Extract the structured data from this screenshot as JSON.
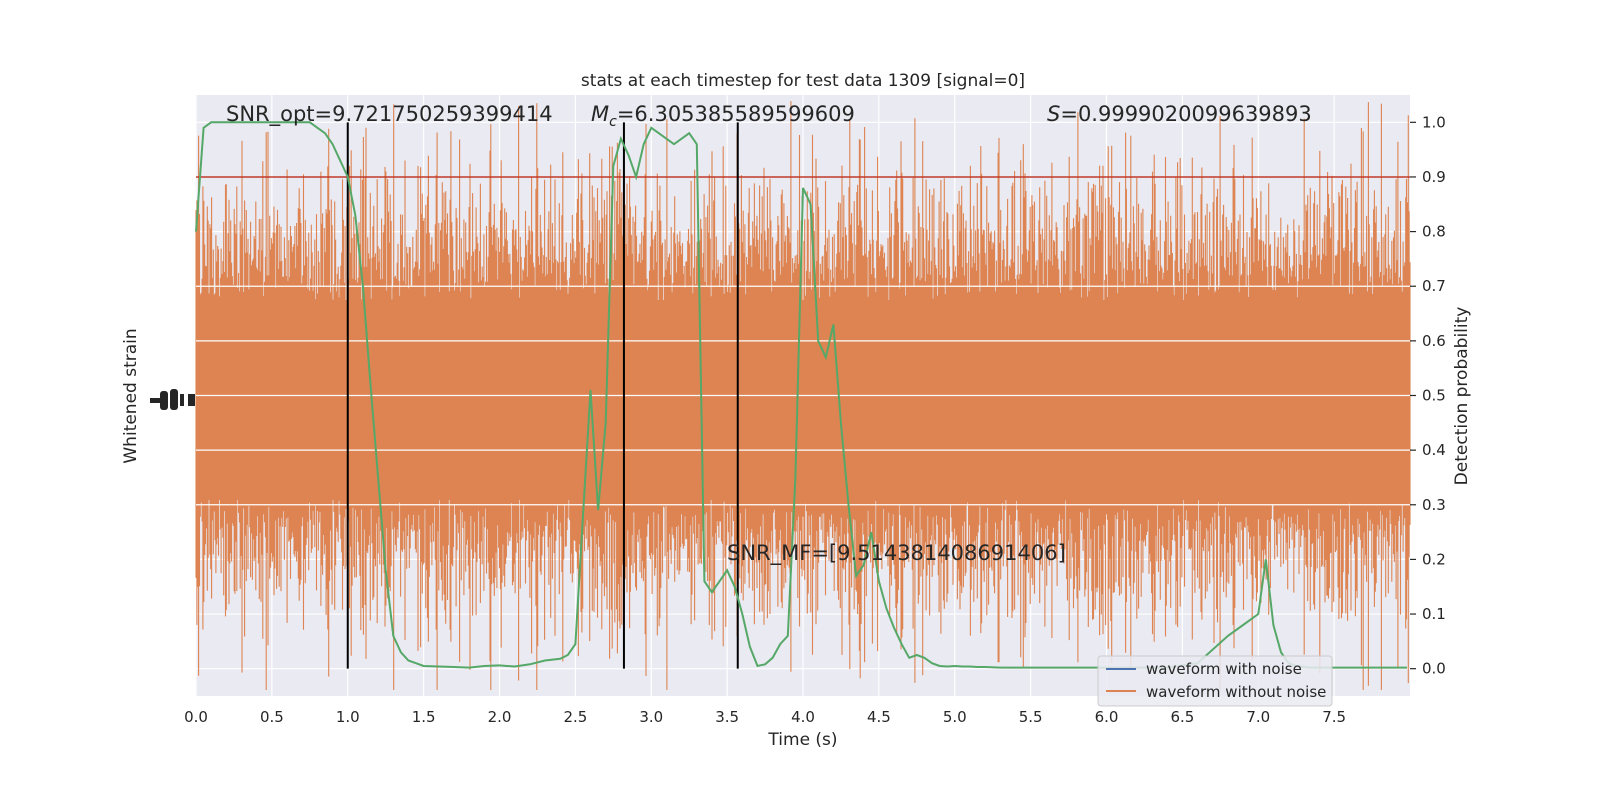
{
  "chart_data": {
    "type": "line",
    "title": "stats at each timestep for test data 1309 [signal=0]",
    "xlabel": "Time (s)",
    "ylabel_left": "Whitened strain",
    "ylabel_right": "Detection probability",
    "xlim": [
      0.0,
      8.0
    ],
    "ylim_right": [
      -0.05,
      1.05
    ],
    "x_ticks": [
      "0.0",
      "0.5",
      "1.0",
      "1.5",
      "2.0",
      "2.5",
      "3.0",
      "3.5",
      "4.0",
      "4.5",
      "5.0",
      "5.5",
      "6.0",
      "6.5",
      "7.0",
      "7.5"
    ],
    "right_ticks": [
      "0.0",
      "0.1",
      "0.2",
      "0.3",
      "0.4",
      "0.5",
      "0.6",
      "0.7",
      "0.8",
      "0.9",
      "1.0"
    ],
    "grid": true,
    "threshold": 0.9,
    "threshold_color": "#c0392b",
    "vertical_markers": [
      1.0,
      2.82,
      3.57
    ],
    "annotations": {
      "snr_opt": "SNR_opt=9.721750259399414",
      "mc_symbol": "M",
      "mc_sub": "c",
      "mc_value": "=6.305385589599609",
      "s_symbol": "S",
      "s_value": "=0.9999020099639893",
      "snr_mf": "SNR_MF=[9.514381408691406]"
    },
    "legend": {
      "position": "bottom-right",
      "entries": [
        {
          "label": "waveform with noise",
          "color": "#4c72b0"
        },
        {
          "label": "waveform without noise",
          "color": "#dd8452"
        }
      ]
    },
    "series": [
      {
        "name": "",
        "axis": "right",
        "color": "#55a868",
        "x": [
          0.0,
          0.05,
          0.1,
          0.15,
          0.2,
          0.25,
          0.3,
          0.35,
          0.4,
          0.45,
          0.5,
          0.55,
          0.6,
          0.65,
          0.7,
          0.75,
          0.8,
          0.85,
          0.9,
          0.95,
          1.0,
          1.05,
          1.1,
          1.15,
          1.2,
          1.25,
          1.3,
          1.35,
          1.4,
          1.45,
          1.5,
          1.6,
          1.7,
          1.8,
          1.9,
          2.0,
          2.05,
          2.1,
          2.15,
          2.2,
          2.3,
          2.4,
          2.45,
          2.5,
          2.55,
          2.6,
          2.65,
          2.7,
          2.75,
          2.8,
          2.85,
          2.9,
          2.95,
          3.0,
          3.05,
          3.1,
          3.15,
          3.2,
          3.25,
          3.3,
          3.35,
          3.4,
          3.45,
          3.5,
          3.55,
          3.6,
          3.65,
          3.7,
          3.75,
          3.8,
          3.85,
          3.9,
          3.95,
          4.0,
          4.05,
          4.1,
          4.15,
          4.2,
          4.25,
          4.3,
          4.35,
          4.4,
          4.45,
          4.5,
          4.55,
          4.6,
          4.65,
          4.7,
          4.75,
          4.8,
          4.85,
          4.9,
          4.95,
          5.0,
          5.05,
          5.1,
          5.15,
          5.2,
          5.3,
          5.4,
          5.5,
          5.6,
          5.8,
          6.0,
          6.2,
          6.4,
          6.6,
          6.8,
          6.9,
          7.0,
          7.05,
          7.1,
          7.15,
          7.2,
          7.25,
          7.3,
          7.35,
          7.4,
          7.45,
          7.5,
          7.6,
          7.7,
          7.8,
          7.9,
          7.98
        ],
        "values": [
          0.8,
          0.99,
          1.0,
          1.0,
          1.0,
          1.0,
          1.0,
          1.0,
          1.0,
          1.0,
          1.0,
          1.0,
          1.0,
          1.0,
          1.0,
          1.0,
          0.99,
          0.98,
          0.96,
          0.93,
          0.9,
          0.83,
          0.7,
          0.52,
          0.35,
          0.18,
          0.06,
          0.03,
          0.015,
          0.01,
          0.005,
          0.004,
          0.003,
          0.002,
          0.005,
          0.006,
          0.005,
          0.004,
          0.006,
          0.008,
          0.015,
          0.018,
          0.025,
          0.045,
          0.28,
          0.51,
          0.29,
          0.45,
          0.92,
          0.97,
          0.94,
          0.9,
          0.96,
          0.99,
          0.98,
          0.97,
          0.96,
          0.97,
          0.98,
          0.96,
          0.16,
          0.14,
          0.16,
          0.18,
          0.15,
          0.1,
          0.04,
          0.005,
          0.008,
          0.02,
          0.045,
          0.06,
          0.35,
          0.88,
          0.85,
          0.6,
          0.57,
          0.63,
          0.45,
          0.3,
          0.17,
          0.19,
          0.25,
          0.16,
          0.11,
          0.075,
          0.045,
          0.02,
          0.025,
          0.02,
          0.01,
          0.005,
          0.004,
          0.005,
          0.004,
          0.004,
          0.003,
          0.003,
          0.002,
          0.002,
          0.002,
          0.002,
          0.002,
          0.002,
          0.002,
          0.002,
          0.01,
          0.06,
          0.08,
          0.1,
          0.2,
          0.08,
          0.03,
          0.01,
          0.005,
          0.003,
          0.002,
          0.002,
          0.002,
          0.002,
          0.002,
          0.002,
          0.002,
          0.002,
          0.002
        ]
      }
    ]
  }
}
